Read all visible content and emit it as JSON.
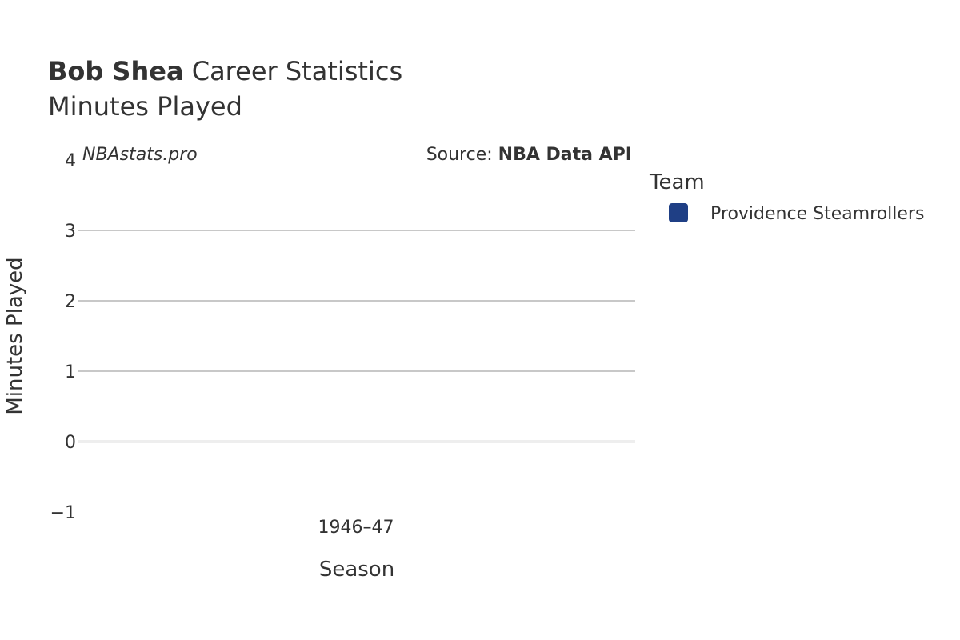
{
  "chart_data": {
    "type": "bar",
    "title_bold": "Bob Shea",
    "title_rest": " Career Statistics",
    "subtitle": "Minutes Played",
    "watermark": "NBAstats.pro",
    "source_prefix": "Source: ",
    "source_name": "NBA Data API",
    "xlabel": "Season",
    "ylabel": "Minutes Played",
    "categories": [
      "1946–47"
    ],
    "series": [
      {
        "name": "Providence Steamrollers",
        "values": [
          0
        ],
        "color": "#1f3f85"
      }
    ],
    "ylim": [
      -1,
      4
    ],
    "yticks": [
      -1,
      0,
      1,
      2,
      3,
      4
    ],
    "ytick_labels": [
      "−1",
      "0",
      "1",
      "2",
      "3",
      "4"
    ],
    "grid": true,
    "legend": {
      "title": "Team",
      "placement": "right"
    }
  }
}
